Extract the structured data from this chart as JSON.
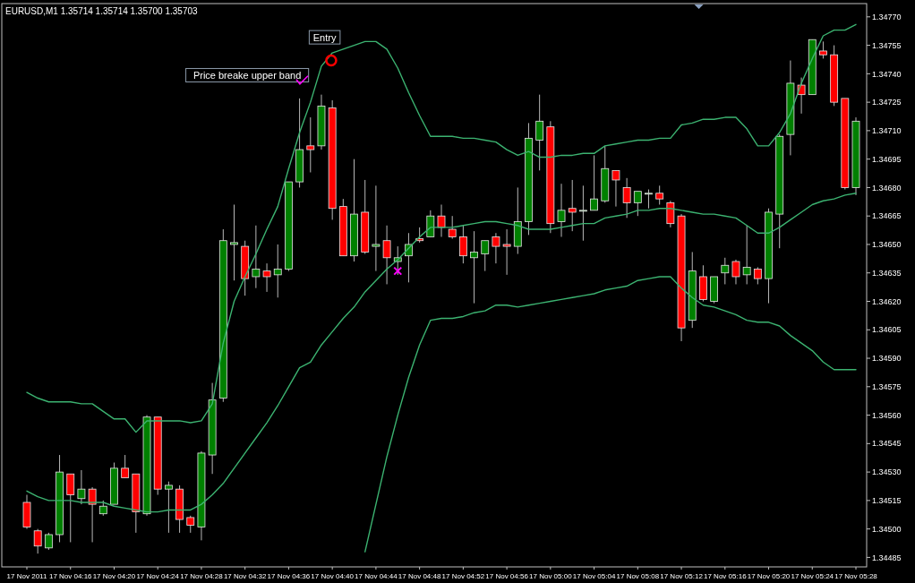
{
  "chart_data": {
    "type": "candlestick",
    "title": "EURUSD,M1  1.35714 1.35714 1.35700 1.35703",
    "categories": [
      "17 Nov 2011",
      null,
      null,
      null,
      "17 Nov 04:16",
      null,
      null,
      null,
      "17 Nov 04:20",
      null,
      null,
      null,
      "17 Nov 04:24",
      null,
      null,
      null,
      "17 Nov 04:28",
      null,
      null,
      null,
      "17 Nov 04:32",
      null,
      null,
      null,
      "17 Nov 04:36",
      null,
      null,
      null,
      "17 Nov 04:40",
      null,
      null,
      null,
      "17 Nov 04:44",
      null,
      null,
      null,
      "17 Nov 04:48",
      null,
      null,
      null,
      "17 Nov 04:52",
      null,
      null,
      null,
      "17 Nov 04:56",
      null,
      null,
      null,
      "17 Nov 05:00",
      null,
      null,
      null,
      "17 Nov 05:04",
      null,
      null,
      null,
      "17 Nov 05:08",
      null,
      null,
      null,
      "17 Nov 05:12",
      null,
      null,
      null,
      "17 Nov 05:16",
      null,
      null,
      null,
      "17 Nov 05:20",
      null,
      null,
      null,
      "17 Nov 05:24",
      null,
      null,
      null,
      "17 Nov 05:28"
    ],
    "ohlc": [
      [
        1.34514,
        1.34518,
        1.345,
        1.34501
      ],
      [
        1.34499,
        1.345,
        1.34487,
        1.34491
      ],
      [
        1.3449,
        1.34498,
        1.34489,
        1.34497
      ],
      [
        1.34497,
        1.34539,
        1.34493,
        1.3453
      ],
      [
        1.34529,
        1.34529,
        1.34493,
        1.34518
      ],
      [
        1.34516,
        1.34531,
        1.34513,
        1.34521
      ],
      [
        1.34521,
        1.34522,
        1.34493,
        1.34513
      ],
      [
        1.34508,
        1.34515,
        1.34507,
        1.34512
      ],
      [
        1.34513,
        1.34535,
        1.34513,
        1.34532
      ],
      [
        1.34532,
        1.34539,
        1.34527,
        1.34527
      ],
      [
        1.34529,
        1.34529,
        1.34498,
        1.34509
      ],
      [
        1.34508,
        1.3456,
        1.34507,
        1.34559
      ],
      [
        1.34559,
        1.34559,
        1.34518,
        1.34521
      ],
      [
        1.34521,
        1.34525,
        1.34498,
        1.34523
      ],
      [
        1.34521,
        1.34523,
        1.34498,
        1.34505
      ],
      [
        1.34506,
        1.34507,
        1.34498,
        1.34502
      ],
      [
        1.34501,
        1.34541,
        1.34494,
        1.3454
      ],
      [
        1.34539,
        1.34577,
        1.34529,
        1.34568
      ],
      [
        1.34569,
        1.34658,
        1.34567,
        1.34652
      ],
      [
        1.3465,
        1.34671,
        1.34631,
        1.34651
      ],
      [
        1.34649,
        1.34652,
        1.34623,
        1.34632
      ],
      [
        1.34633,
        1.3466,
        1.34627,
        1.34637
      ],
      [
        1.34636,
        1.3464,
        1.34625,
        1.34633
      ],
      [
        1.34634,
        1.3465,
        1.34622,
        1.34637
      ],
      [
        1.34637,
        1.34683,
        1.34636,
        1.34683
      ],
      [
        1.34683,
        1.34727,
        1.3468,
        1.347
      ],
      [
        1.34702,
        1.34717,
        1.34688,
        1.347
      ],
      [
        1.34702,
        1.34729,
        1.347,
        1.34723
      ],
      [
        1.34722,
        1.34726,
        1.34663,
        1.34669
      ],
      [
        1.3467,
        1.34674,
        1.34644,
        1.34644
      ],
      [
        1.34644,
        1.34695,
        1.34641,
        1.34666
      ],
      [
        1.34667,
        1.34684,
        1.34645,
        1.34646
      ],
      [
        1.34649,
        1.34681,
        1.34636,
        1.3465
      ],
      [
        1.34652,
        1.3466,
        1.34629,
        1.34643
      ],
      [
        1.34641,
        1.34649,
        1.34634,
        1.34643
      ],
      [
        1.34644,
        1.34656,
        1.3463,
        1.3465
      ],
      [
        1.34653,
        1.34659,
        1.34651,
        1.34652
      ],
      [
        1.34654,
        1.34668,
        1.34654,
        1.34665
      ],
      [
        1.34665,
        1.34671,
        1.34654,
        1.34659
      ],
      [
        1.34658,
        1.34665,
        1.34653,
        1.34654
      ],
      [
        1.34654,
        1.3466,
        1.3464,
        1.34644
      ],
      [
        1.34643,
        1.34657,
        1.34619,
        1.34646
      ],
      [
        1.34645,
        1.34652,
        1.34636,
        1.34652
      ],
      [
        1.34654,
        1.34656,
        1.3464,
        1.34649
      ],
      [
        1.3465,
        1.34658,
        1.34634,
        1.34649
      ],
      [
        1.34649,
        1.3468,
        1.34645,
        1.34662
      ],
      [
        1.34662,
        1.34714,
        1.34655,
        1.34706
      ],
      [
        1.34705,
        1.34729,
        1.34689,
        1.34715
      ],
      [
        1.34712,
        1.34715,
        1.34656,
        1.34661
      ],
      [
        1.34662,
        1.34682,
        1.34654,
        1.34668
      ],
      [
        1.34669,
        1.34684,
        1.34657,
        1.34667
      ],
      [
        1.34668,
        1.34681,
        1.34652,
        1.34668
      ],
      [
        1.34668,
        1.34697,
        1.34668,
        1.34674
      ],
      [
        1.34673,
        1.34702,
        1.34672,
        1.3469
      ],
      [
        1.34689,
        1.34689,
        1.3467,
        1.34684
      ],
      [
        1.3468,
        1.34685,
        1.34664,
        1.34672
      ],
      [
        1.34672,
        1.34678,
        1.34665,
        1.34678
      ],
      [
        1.34677,
        1.34679,
        1.34669,
        1.34677
      ],
      [
        1.34677,
        1.34681,
        1.34671,
        1.34674
      ],
      [
        1.34672,
        1.34673,
        1.34659,
        1.34661
      ],
      [
        1.34665,
        1.34666,
        1.34599,
        1.34606
      ],
      [
        1.3461,
        1.34646,
        1.34606,
        1.34636
      ],
      [
        1.34633,
        1.34639,
        1.3462,
        1.34621
      ],
      [
        1.3462,
        1.34633,
        1.34619,
        1.34633
      ],
      [
        1.34635,
        1.34643,
        1.34629,
        1.34639
      ],
      [
        1.34641,
        1.34642,
        1.34629,
        1.34633
      ],
      [
        1.34634,
        1.3466,
        1.34629,
        1.34638
      ],
      [
        1.34637,
        1.34638,
        1.34629,
        1.34632
      ],
      [
        1.34632,
        1.34669,
        1.34619,
        1.34667
      ],
      [
        1.34666,
        1.34708,
        1.34648,
        1.34707
      ],
      [
        1.34708,
        1.34747,
        1.34697,
        1.34735
      ],
      [
        1.34734,
        1.34738,
        1.34719,
        1.34729
      ],
      [
        1.34729,
        1.34758,
        1.34729,
        1.34758
      ],
      [
        1.34752,
        1.34757,
        1.34748,
        1.3475
      ],
      [
        1.3475,
        1.34755,
        1.34723,
        1.34725
      ],
      [
        1.34727,
        1.34727,
        1.34679,
        1.3468
      ],
      [
        1.3468,
        1.34717,
        1.34676,
        1.34715
      ]
    ],
    "colors": [
      "#ff0000",
      "#ff0000",
      "#008000",
      "#008000",
      "#ff0000",
      "#008000",
      "#ff0000",
      "#008000",
      "#008000",
      "#ff0000",
      "#ff0000",
      "#008000",
      "#ff0000",
      "#008000",
      "#ff0000",
      "#ff0000",
      "#008000",
      "#008000",
      "#008000",
      "#008000",
      "#ff0000",
      "#008000",
      "#ff0000",
      "#008000",
      "#008000",
      "#008000",
      "#ff0000",
      "#008000",
      "#ff0000",
      "#ff0000",
      "#008000",
      "#ff0000",
      "#008000",
      "#ff0000",
      "#008000",
      "#008000",
      "#ff0000",
      "#008000",
      "#ff0000",
      "#ff0000",
      "#ff0000",
      "#008000",
      "#008000",
      "#ff0000",
      "#ff0000",
      "#008000",
      "#008000",
      "#008000",
      "#ff0000",
      "#008000",
      "#ff0000",
      "#008000",
      "#008000",
      "#008000",
      "#ff0000",
      "#ff0000",
      "#008000",
      "#008000",
      "#ff0000",
      "#ff0000",
      "#ff0000",
      "#008000",
      "#ff0000",
      "#008000",
      "#008000",
      "#ff0000",
      "#008000",
      "#ff0000",
      "#008000",
      "#008000",
      "#008000",
      "#ff0000",
      "#008000",
      "#ff0000",
      "#ff0000",
      "#ff0000",
      "#008000"
    ],
    "series": [
      {
        "type": "line",
        "color": "#3cb371",
        "values": [
          1.34572,
          1.34569,
          1.34567,
          1.34567,
          1.34567,
          1.34566,
          1.34566,
          1.34562,
          1.34558,
          1.34558,
          1.34551,
          1.34557,
          1.34557,
          1.34557,
          1.34557,
          1.34556,
          1.34557,
          1.34566,
          1.34598,
          1.3462,
          1.34633,
          1.34645,
          1.34658,
          1.3467,
          1.3469,
          1.34709,
          1.34725,
          1.34744,
          1.34751,
          1.34753,
          1.34755,
          1.34757,
          1.34757,
          1.34753,
          1.34743,
          1.3473,
          1.34718,
          1.34707,
          1.34707,
          1.34707,
          1.34706,
          1.34706,
          1.34705,
          1.34704,
          1.347,
          1.34697,
          1.34699,
          1.34696,
          1.34696,
          1.34697,
          1.34697,
          1.34698,
          1.34698,
          1.34702,
          1.34703,
          1.34704,
          1.34705,
          1.34705,
          1.34706,
          1.34706,
          1.34713,
          1.34714,
          1.34716,
          1.34716,
          1.34717,
          1.34717,
          1.34711,
          1.34702,
          1.34702,
          1.34709,
          1.34719,
          1.34735,
          1.34748,
          1.3476,
          1.34763,
          1.34763,
          1.34766
        ]
      },
      {
        "type": "line",
        "color": "#3cb371",
        "values": [
          1.3452,
          1.34517,
          1.34515,
          1.34515,
          1.34515,
          1.34514,
          1.34514,
          1.34514,
          1.34512,
          1.34511,
          1.3451,
          1.34509,
          1.34509,
          1.3451,
          1.3451,
          1.3451,
          1.34513,
          1.34518,
          1.34524,
          1.34532,
          1.3454,
          1.34548,
          1.34556,
          1.34565,
          1.34575,
          1.34585,
          1.34588,
          1.34597,
          1.34604,
          1.34611,
          1.34617,
          1.34625,
          1.34631,
          1.34637,
          1.34642,
          1.34648,
          1.34654,
          1.34659,
          1.34659,
          1.34659,
          1.3466,
          1.34661,
          1.34662,
          1.34662,
          1.34661,
          1.3466,
          1.34658,
          1.34658,
          1.34658,
          1.34659,
          1.3466,
          1.34661,
          1.34661,
          1.34664,
          1.34665,
          1.34666,
          1.34668,
          1.34668,
          1.34669,
          1.34669,
          1.34668,
          1.34667,
          1.34666,
          1.34666,
          1.34665,
          1.34664,
          1.3466,
          1.34656,
          1.34656,
          1.34659,
          1.34663,
          1.34667,
          1.34671,
          1.34673,
          1.34674,
          1.34676,
          1.34677
        ]
      },
      {
        "type": "line",
        "color": "#3cb371",
        "values": [
          null,
          null,
          null,
          null,
          null,
          null,
          null,
          null,
          null,
          null,
          null,
          null,
          null,
          null,
          null,
          null,
          null,
          null,
          null,
          null,
          null,
          null,
          null,
          null,
          null,
          null,
          null,
          null,
          null,
          null,
          null,
          1.34488,
          1.34513,
          1.34538,
          1.3456,
          1.3458,
          1.34597,
          1.3461,
          1.34611,
          1.34611,
          1.34612,
          1.34614,
          1.34615,
          1.34618,
          1.34618,
          1.34617,
          1.34618,
          1.34619,
          1.3462,
          1.34621,
          1.34622,
          1.34623,
          1.34624,
          1.34626,
          1.34627,
          1.34628,
          1.34631,
          1.34632,
          1.34633,
          1.34633,
          1.34627,
          1.34622,
          1.34618,
          1.34617,
          1.34615,
          1.34613,
          1.3461,
          1.34609,
          1.34609,
          1.34607,
          1.34602,
          1.34598,
          1.34594,
          1.34588,
          1.34584,
          1.34584,
          1.34584
        ]
      }
    ],
    "ylim": [
      1.3448,
      1.34777
    ],
    "yticks": [
      {
        "value": 1.34485,
        "label": "1.34485"
      },
      {
        "value": 1.345,
        "label": "1.34500"
      },
      {
        "value": 1.34515,
        "label": "1.34515"
      },
      {
        "value": 1.3453,
        "label": "1.34530"
      },
      {
        "value": 1.34545,
        "label": "1.34545"
      },
      {
        "value": 1.3456,
        "label": "1.34560"
      },
      {
        "value": 1.34575,
        "label": "1.34575"
      },
      {
        "value": 1.3459,
        "label": "1.34590"
      },
      {
        "value": 1.34605,
        "label": "1.34605"
      },
      {
        "value": 1.3462,
        "label": "1.34620"
      },
      {
        "value": 1.34635,
        "label": "1.34635"
      },
      {
        "value": 1.3465,
        "label": "1.34650"
      },
      {
        "value": 1.34665,
        "label": "1.34665"
      },
      {
        "value": 1.3468,
        "label": "1.34680"
      },
      {
        "value": 1.34695,
        "label": "1.34695"
      },
      {
        "value": 1.3471,
        "label": "1.34710"
      },
      {
        "value": 1.34725,
        "label": "1.34725"
      },
      {
        "value": 1.3474,
        "label": "1.34740"
      },
      {
        "value": 1.34755,
        "label": "1.34755"
      },
      {
        "value": 1.3477,
        "label": "1.34770"
      }
    ],
    "annotations": [
      "Price breake upper band",
      "Entry"
    ]
  }
}
